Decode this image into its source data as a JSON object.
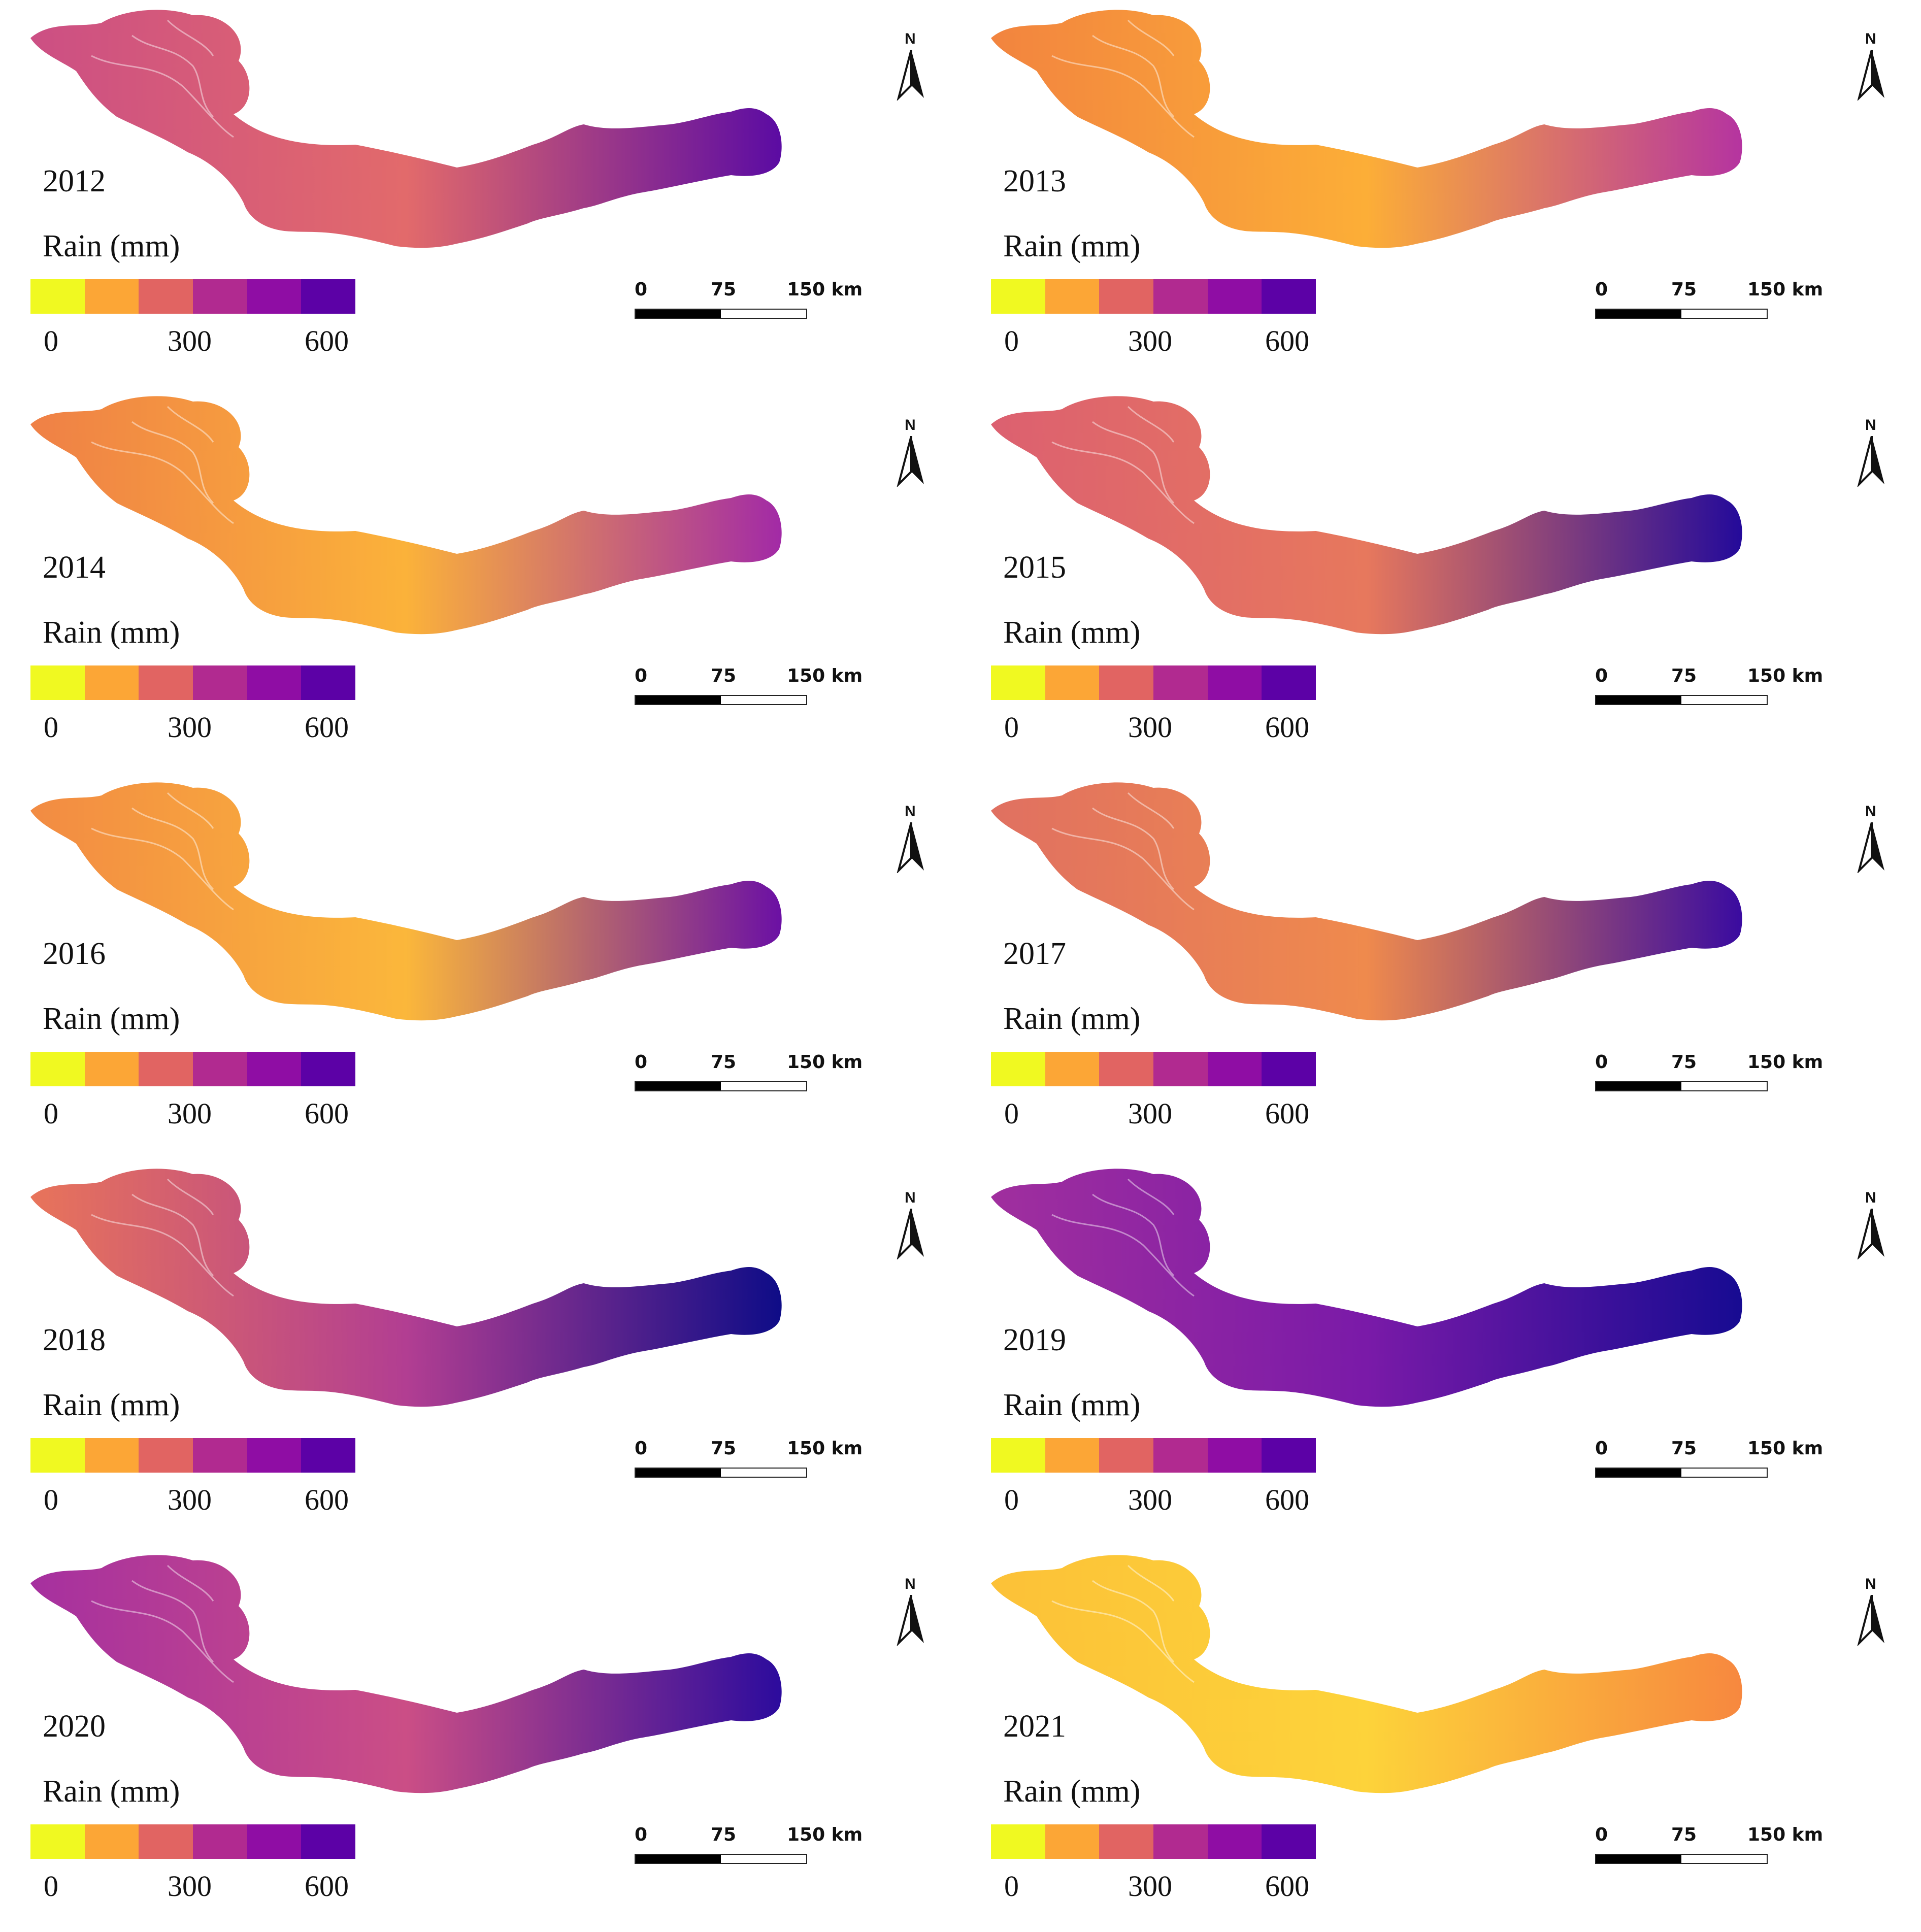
{
  "figure": {
    "legend": {
      "title": "Rain (mm)",
      "ticks": [
        "0",
        "300",
        "600"
      ],
      "colors": [
        "#f0f921",
        "#fca636",
        "#e16462",
        "#b12a90",
        "#8f0da4",
        "#5c01a6"
      ]
    },
    "scale_bar": {
      "labels": [
        "0",
        "75",
        "150 km"
      ],
      "filled_fraction": 0.5
    },
    "north_arrow": {
      "label": "N"
    },
    "panels": [
      {
        "year": "2012",
        "color_west": "#cc4f84",
        "color_mid": "#e26a6b",
        "color_east": "#5b0ba3"
      },
      {
        "year": "2013",
        "color_west": "#f2843f",
        "color_mid": "#fcae37",
        "color_east": "#b534a0"
      },
      {
        "year": "2014",
        "color_west": "#ef8046",
        "color_mid": "#fbb23a",
        "color_east": "#a22aa6"
      },
      {
        "year": "2015",
        "color_west": "#dc6070",
        "color_mid": "#e7785d",
        "color_east": "#240a9a"
      },
      {
        "year": "2016",
        "color_west": "#f28b43",
        "color_mid": "#fbb73b",
        "color_east": "#6b10a4"
      },
      {
        "year": "2017",
        "color_west": "#e07061",
        "color_mid": "#ef8a4d",
        "color_east": "#3a0ba0"
      },
      {
        "year": "2018",
        "color_west": "#e8745a",
        "color_mid": "#b23e92",
        "color_east": "#0e0c87"
      },
      {
        "year": "2019",
        "color_west": "#a02f9e",
        "color_mid": "#7a1aa8",
        "color_east": "#170b92"
      },
      {
        "year": "2020",
        "color_west": "#a6309f",
        "color_mid": "#cb4e86",
        "color_east": "#2c0b9d"
      },
      {
        "year": "2021",
        "color_west": "#fcc138",
        "color_mid": "#fdd33a",
        "color_east": "#f7883f"
      }
    ]
  }
}
